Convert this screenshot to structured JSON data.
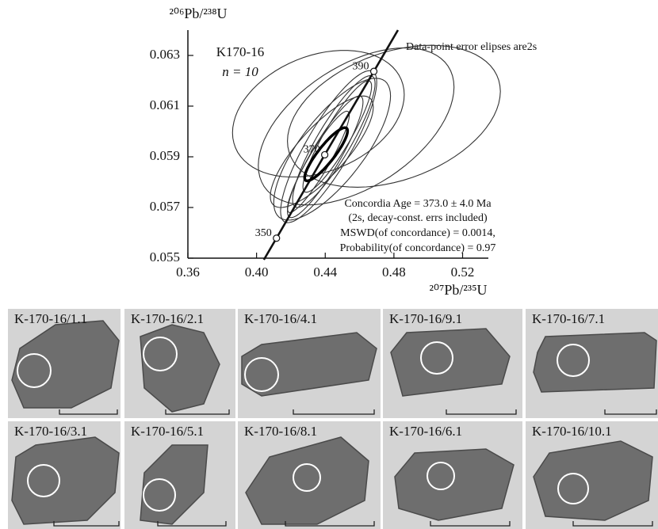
{
  "chart_data": {
    "type": "concordia",
    "y_label": "²⁰⁶Pb/²³⁸U",
    "x_label": "²⁰⁷Pb/²³⁵U",
    "xlim": [
      0.36,
      0.535
    ],
    "ylim": [
      0.055,
      0.064
    ],
    "xticks": [
      0.36,
      {
        "value": 0.4,
        "label": "0.40"
      },
      0.44,
      0.48,
      0.52
    ],
    "yticks": [
      0.055,
      0.057,
      0.059,
      0.061,
      0.063
    ],
    "sample": "K170-16",
    "n_label": "n = 10",
    "note": "Data-point error elipses are2s",
    "result_lines": [
      "Concordia Age = 373.0 ± 4.0 Ma",
      "(2s, decay-const. errs included)",
      "MSWD(of concordance) = 0.0014,",
      "Probability(of concordance)  = 0.97"
    ],
    "concordia": {
      "ages": [
        350,
        370,
        390
      ],
      "x": [
        0.4116,
        0.4397,
        0.4683
      ],
      "y": [
        0.05579,
        0.05908,
        0.06237
      ],
      "color": "#111111"
    },
    "ellipses": {
      "color": "#333333",
      "cx": [
        0.436,
        0.48,
        0.458,
        0.442,
        0.445,
        0.44,
        0.438,
        0.447,
        0.436,
        0.444
      ],
      "cy": [
        0.0607,
        0.0606,
        0.0602,
        0.0594,
        0.0596,
        0.059,
        0.0592,
        0.0598,
        0.0588,
        0.0593
      ],
      "sx": [
        0.05,
        0.062,
        0.057,
        0.028,
        0.024,
        0.022,
        0.03,
        0.02,
        0.018,
        0.034
      ],
      "sy": [
        0.0025,
        0.0028,
        0.0031,
        0.003,
        0.0026,
        0.0024,
        0.0022,
        0.0022,
        0.002,
        0.0028
      ],
      "rho": [
        0.3,
        0.35,
        0.5,
        0.85,
        0.88,
        0.9,
        0.8,
        0.9,
        0.92,
        0.75
      ]
    },
    "concordia_ellipse": {
      "cx": 0.4405,
      "cy": 0.0591,
      "sx": 0.0125,
      "sy": 0.00105,
      "rho": 0.88,
      "color": "#000000"
    }
  },
  "panels": {
    "labels": [
      "K-170-16/1.1",
      "K-170-16/2.1",
      "K-170-16/4.1",
      "K-170-16/9.1",
      "K-170-16/7.1",
      "K-170-16/3.1",
      "K-170-16/5.1",
      "K-170-16/8.1",
      "K-170-16/6.1",
      "K-170-16/10.1"
    ]
  }
}
